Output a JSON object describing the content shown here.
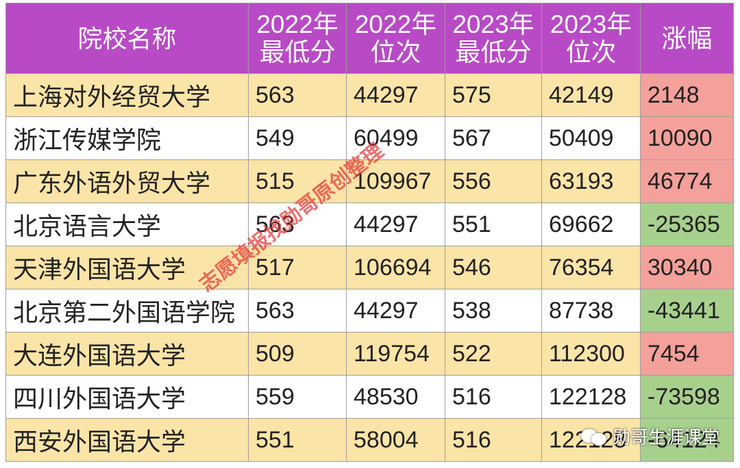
{
  "table": {
    "headers": [
      {
        "lines": [
          "院校名称"
        ]
      },
      {
        "lines": [
          "2022年",
          "最低分"
        ]
      },
      {
        "lines": [
          "2022年",
          "位次"
        ]
      },
      {
        "lines": [
          "2023年",
          "最低分"
        ]
      },
      {
        "lines": [
          "2023年",
          "位次"
        ]
      },
      {
        "lines": [
          "涨幅"
        ]
      }
    ],
    "rows": [
      {
        "name": "上海对外经贸大学",
        "min2022": "563",
        "rank2022": "44297",
        "min2023": "575",
        "rank2023": "42149",
        "change": "2148",
        "trend": "up"
      },
      {
        "name": "浙江传媒学院",
        "min2022": "549",
        "rank2022": "60499",
        "min2023": "567",
        "rank2023": "50409",
        "change": "10090",
        "trend": "up"
      },
      {
        "name": "广东外语外贸大学",
        "min2022": "515",
        "rank2022": "109967",
        "min2023": "556",
        "rank2023": "63193",
        "change": "46774",
        "trend": "up"
      },
      {
        "name": "北京语言大学",
        "min2022": "563",
        "rank2022": "44297",
        "min2023": "551",
        "rank2023": "69662",
        "change": "-25365",
        "trend": "down"
      },
      {
        "name": "天津外国语大学",
        "min2022": "517",
        "rank2022": "106694",
        "min2023": "546",
        "rank2023": "76354",
        "change": "30340",
        "trend": "up"
      },
      {
        "name": "北京第二外国语学院",
        "min2022": "563",
        "rank2022": "44297",
        "min2023": "538",
        "rank2023": "87738",
        "change": "-43441",
        "trend": "down"
      },
      {
        "name": "大连外国语大学",
        "min2022": "509",
        "rank2022": "119754",
        "min2023": "522",
        "rank2023": "112300",
        "change": "7454",
        "trend": "up"
      },
      {
        "name": "四川外国语大学",
        "min2022": "559",
        "rank2022": "48530",
        "min2023": "516",
        "rank2023": "122128",
        "change": "-73598",
        "trend": "down"
      },
      {
        "name": "西安外国语大学",
        "min2022": "551",
        "rank2022": "58004",
        "min2023": "516",
        "rank2023": "122128",
        "change": "-64124",
        "trend": "down"
      }
    ]
  },
  "watermark": "志愿填报找勋哥原创整理",
  "brand": {
    "name": "勋哥生涯课堂",
    "icon": "wechat-icon"
  },
  "colors": {
    "header_bg": "#b84ac6",
    "row_highlight": "#fbe4a7",
    "increase": "#f4a09b",
    "decrease": "#a8d08d"
  }
}
